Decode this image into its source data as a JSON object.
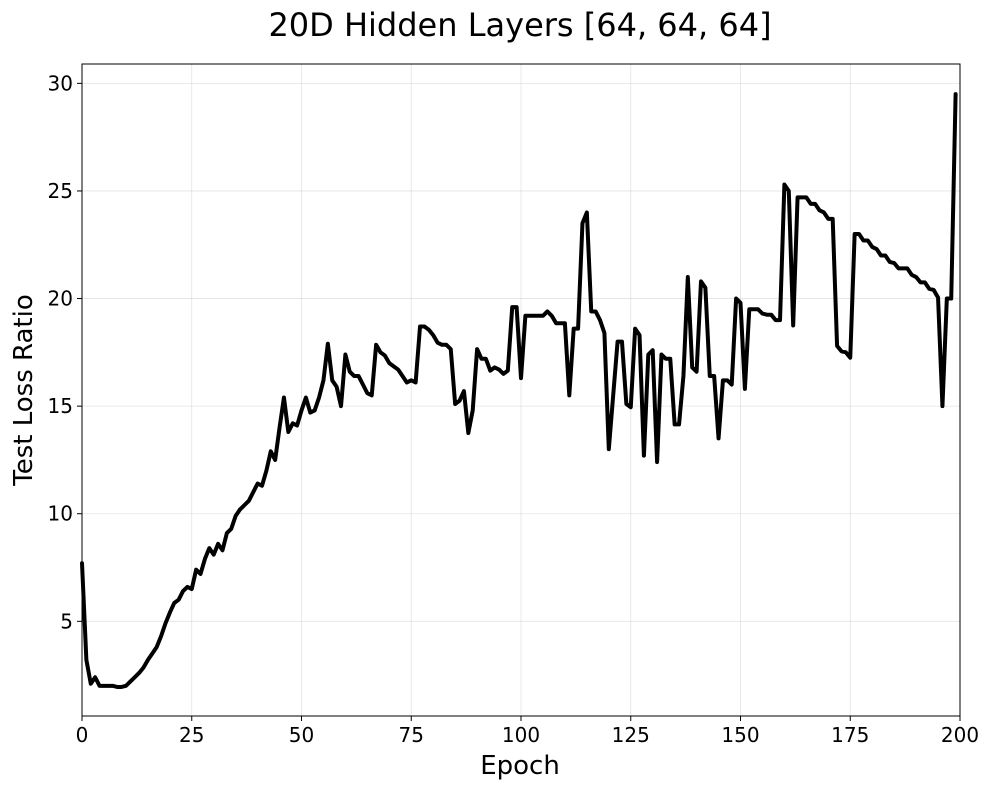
{
  "chart_data": {
    "type": "line",
    "title": "20D Hidden Layers [64, 64, 64]",
    "xlabel": "Epoch",
    "ylabel": "Test Loss Ratio",
    "xlim": [
      0,
      200
    ],
    "ylim": [
      0.6,
      30.9
    ],
    "xticks": [
      0,
      25,
      50,
      75,
      100,
      125,
      150,
      175,
      200
    ],
    "yticks": [
      5,
      10,
      15,
      20,
      25,
      30
    ],
    "grid": true,
    "legend": "none",
    "line_color": "#000000",
    "series": [
      {
        "x": [
          0,
          1,
          2,
          3,
          4,
          5,
          6,
          7,
          8,
          9,
          10,
          11,
          12,
          13,
          14,
          15,
          16,
          17,
          18,
          19,
          20,
          21,
          22,
          23,
          24,
          25,
          26,
          27,
          28,
          29,
          30,
          31,
          32,
          33,
          34,
          35,
          36,
          37,
          38,
          39,
          40,
          41,
          42,
          43,
          44,
          45,
          46,
          47,
          48,
          49,
          50,
          51,
          52,
          53,
          54,
          55,
          56,
          57,
          58,
          59,
          60,
          61,
          62,
          63,
          64,
          65,
          66,
          67,
          68,
          69,
          70,
          71,
          72,
          73,
          74,
          75,
          76,
          77,
          78,
          79,
          80,
          81,
          82,
          83,
          84,
          85,
          86,
          87,
          88,
          89,
          90,
          91,
          92,
          93,
          94,
          95,
          96,
          97,
          98,
          99,
          100,
          101,
          102,
          103,
          104,
          105,
          106,
          107,
          108,
          109,
          110,
          111,
          112,
          113,
          114,
          115,
          116,
          117,
          118,
          119,
          120,
          121,
          122,
          123,
          124,
          125,
          126,
          127,
          128,
          129,
          130,
          131,
          132,
          133,
          134,
          135,
          136,
          137,
          138,
          139,
          140,
          141,
          142,
          143,
          144,
          145,
          146,
          147,
          148,
          149,
          150,
          151,
          152,
          153,
          154,
          155,
          156,
          157,
          158,
          159,
          160,
          161,
          162,
          163,
          164,
          165,
          166,
          167,
          168,
          169,
          170,
          171,
          172,
          173,
          174,
          175,
          176,
          177,
          178,
          179,
          180,
          181,
          182,
          183,
          184,
          185,
          186,
          187,
          188,
          189,
          190,
          191,
          192,
          193,
          194,
          195,
          196,
          197,
          198,
          199
        ],
        "values": [
          7.7,
          3.2,
          2.1,
          2.4,
          2.0,
          2.0,
          2.0,
          2.0,
          1.95,
          1.95,
          2.0,
          2.2,
          2.4,
          2.6,
          2.85,
          3.2,
          3.5,
          3.8,
          4.3,
          4.9,
          5.4,
          5.85,
          6.0,
          6.4,
          6.6,
          6.5,
          7.4,
          7.2,
          7.9,
          8.4,
          8.1,
          8.6,
          8.3,
          9.1,
          9.3,
          9.9,
          10.2,
          10.4,
          10.6,
          11.0,
          11.4,
          11.3,
          12.0,
          12.9,
          12.5,
          14.0,
          15.4,
          13.8,
          14.2,
          14.1,
          14.8,
          15.4,
          14.7,
          14.8,
          15.4,
          16.2,
          17.9,
          16.2,
          15.9,
          15.0,
          17.4,
          16.6,
          16.4,
          16.4,
          16.0,
          15.6,
          15.5,
          17.85,
          17.5,
          17.35,
          17.0,
          16.85,
          16.7,
          16.4,
          16.1,
          16.2,
          16.1,
          18.7,
          18.7,
          18.55,
          18.3,
          17.95,
          17.85,
          17.85,
          17.65,
          15.1,
          15.25,
          15.7,
          13.75,
          14.8,
          17.65,
          17.2,
          17.2,
          16.65,
          16.8,
          16.7,
          16.5,
          16.65,
          19.6,
          19.6,
          16.3,
          19.2,
          19.2,
          19.2,
          19.2,
          19.2,
          19.4,
          19.2,
          18.85,
          18.85,
          18.85,
          15.5,
          18.6,
          18.6,
          23.5,
          24.0,
          19.4,
          19.4,
          19.0,
          18.4,
          13.0,
          15.5,
          18.0,
          18.0,
          15.1,
          14.95,
          18.6,
          18.3,
          12.7,
          17.4,
          17.6,
          12.4,
          17.4,
          17.2,
          17.2,
          14.15,
          14.15,
          16.4,
          21.0,
          16.8,
          16.6,
          20.8,
          20.5,
          16.4,
          16.4,
          13.5,
          16.2,
          16.2,
          16.0,
          20.0,
          19.8,
          15.8,
          19.5,
          19.5,
          19.5,
          19.3,
          19.25,
          19.25,
          19.0,
          19.0,
          25.3,
          25.0,
          18.75,
          24.7,
          24.7,
          24.7,
          24.4,
          24.4,
          24.1,
          24.0,
          23.7,
          23.7,
          17.8,
          17.55,
          17.5,
          17.25,
          23.0,
          23.0,
          22.7,
          22.7,
          22.4,
          22.3,
          22.0,
          22.0,
          21.7,
          21.65,
          21.4,
          21.4,
          21.4,
          21.1,
          21.0,
          20.75,
          20.75,
          20.45,
          20.4,
          20.05,
          15.0,
          20.0,
          20.0,
          29.5
        ]
      }
    ]
  }
}
